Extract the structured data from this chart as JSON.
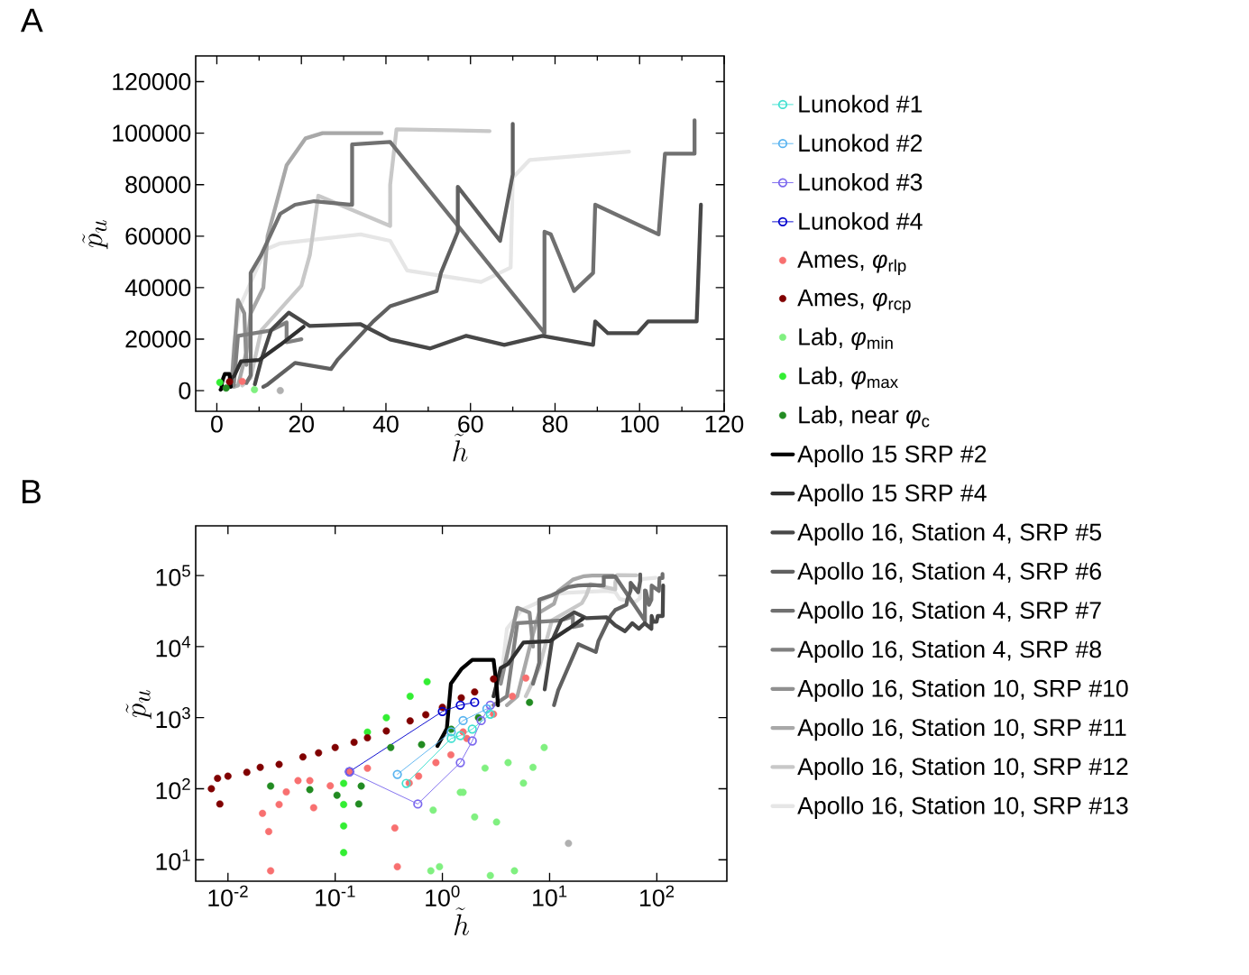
{
  "chart_data": [
    {
      "type": "line",
      "title": "A",
      "xlabel": "\\tilde{h}",
      "ylabel": "\\tilde{p}_u",
      "xlim": [
        -5,
        120
      ],
      "ylim": [
        -8000,
        130000
      ],
      "xticks": [
        0,
        20,
        40,
        60,
        80,
        100,
        120
      ],
      "yticks": [
        0,
        20000,
        40000,
        60000,
        80000,
        100000,
        120000
      ],
      "series": [
        {
          "type": "scatter",
          "marker": "circle",
          "color": "#f87070",
          "x": [
            6.0
          ],
          "values": [
            3600
          ]
        },
        {
          "type": "scatter",
          "marker": "circle",
          "color": "#800000",
          "x": [
            3
          ],
          "values": [
            3500
          ]
        },
        {
          "type": "scatter",
          "marker": "circle",
          "color": "#80f080",
          "x": [
            8.9
          ],
          "values": [
            400
          ]
        },
        {
          "type": "scatter",
          "marker": "circle",
          "color": "#33ee33",
          "x": [
            0.7
          ],
          "values": [
            3200
          ]
        },
        {
          "type": "scatter",
          "marker": "circle",
          "color": "#228b22",
          "x": [
            2.2
          ],
          "values": [
            1000
          ]
        },
        {
          "color": "#000000",
          "x": [
            0.9,
            1.1,
            1.2,
            1.5,
            1.9,
            3.0,
            3.2,
            3.3
          ],
          "values": [
            400,
            700,
            3000,
            4800,
            6500,
            6500,
            2900,
            1500
          ]
        },
        {
          "color": "#303030",
          "x": [
            3.0,
            3.5,
            4.1,
            5.7,
            10,
            15,
            20.5
          ],
          "values": [
            2000,
            5000,
            5700,
            11400,
            11900,
            17800,
            24800
          ]
        },
        {
          "color": "#484848",
          "x": [
            9,
            10.5,
            12.8,
            17,
            22,
            34,
            41,
            50.5,
            59,
            68,
            77,
            89,
            89.5,
            92.5,
            99.5,
            102,
            113.5,
            114.5
          ],
          "values": [
            2500,
            11900,
            23400,
            30300,
            25100,
            25800,
            19900,
            16400,
            21300,
            17800,
            21300,
            17800,
            26900,
            22300,
            22300,
            26900,
            26900,
            72200
          ]
        },
        {
          "color": "#606060",
          "x": [
            11,
            12,
            18.5,
            27,
            28.5,
            37,
            41,
            52,
            53,
            57,
            57,
            67,
            70,
            70
          ],
          "values": [
            1500,
            2400,
            10800,
            8400,
            11900,
            26900,
            32800,
            38700,
            45700,
            61700,
            79200,
            58200,
            84000,
            103600
          ]
        },
        {
          "color": "#707070",
          "x": [
            7,
            8,
            8,
            10.5,
            15,
            18.5,
            23,
            32,
            32,
            41,
            77,
            77.5,
            77.5,
            79,
            84.5,
            89,
            89.5,
            104.5,
            106,
            113,
            113
          ],
          "values": [
            3000,
            5900,
            45700,
            52700,
            68700,
            72200,
            73600,
            72200,
            95600,
            96600,
            23400,
            22300,
            61700,
            60700,
            38700,
            45700,
            72200,
            60700,
            92000,
            92000,
            105000
          ]
        },
        {
          "color": "#808080",
          "x": [
            3,
            4,
            5,
            12.8,
            16.5,
            16.5,
            20
          ],
          "values": [
            1500,
            2000,
            21300,
            23400,
            26500,
            18800,
            20000
          ]
        },
        {
          "color": "#909090",
          "x": [
            3.5,
            5,
            6.5,
            7
          ],
          "values": [
            3000,
            35200,
            30000,
            10000
          ]
        },
        {
          "color": "#a8a8a8",
          "x": [
            4,
            5,
            7,
            8,
            11,
            12,
            16.5,
            21,
            25,
            39
          ],
          "values": [
            1500,
            2000,
            15000,
            30000,
            40000,
            60000,
            87500,
            98000,
            100000,
            100000
          ]
        },
        {
          "color": "#c8c8c8",
          "x": [
            6,
            8,
            10.5,
            20,
            22,
            24,
            41,
            41,
            42.5,
            64.5
          ],
          "values": [
            2000,
            5000,
            23400,
            40800,
            52700,
            75700,
            64000,
            80000,
            101500,
            100800
          ]
        },
        {
          "color": "#e6e6e6",
          "x": [
            3.5,
            4,
            5.5,
            11.5,
            15,
            34,
            41,
            45,
            62.5,
            69.5,
            70,
            74,
            97.5
          ],
          "values": [
            3000,
            17800,
            32800,
            54800,
            57200,
            60700,
            58200,
            46700,
            42200,
            47800,
            82700,
            89600,
            92800
          ]
        },
        {
          "type": "scatter",
          "marker": "circle",
          "color": "#b0b0b0",
          "x": [
            15
          ],
          "values": [
            17
          ]
        }
      ]
    },
    {
      "type": "line",
      "title": "B",
      "xlabel": "\\tilde{h}",
      "ylabel": "\\tilde{p}_u",
      "log": "xy",
      "legend": "right",
      "xlim": [
        0.005,
        450
      ],
      "ylim": [
        5,
        500000
      ],
      "xticks": [
        {
          "value": 0.01,
          "label": "10$^{-2}$"
        },
        {
          "value": 0.1,
          "label": "10$^{-1}$"
        },
        {
          "value": 1,
          "label": "10$^{0}$"
        },
        {
          "value": 10,
          "label": "10$^{1}$"
        },
        {
          "value": 100,
          "label": "10$^{2}$"
        }
      ],
      "yticks": [
        {
          "value": 10,
          "label": "10$^{1}$"
        },
        {
          "value": 100,
          "label": "10$^{2}$"
        },
        {
          "value": 1000,
          "label": "10$^{3}$"
        },
        {
          "value": 10000,
          "label": "10$^{4}$"
        },
        {
          "value": 100000,
          "label": "10$^{5}$"
        }
      ],
      "series": [
        {
          "name": "Lunokod #1",
          "color": "#40e0d0",
          "marker": "circle",
          "x": [
            0.46,
            1.21,
            1.47,
            1.9,
            2.8
          ],
          "values": [
            119,
            510,
            560,
            690,
            1120
          ]
        },
        {
          "name": "Lunokod #2",
          "color": "#5ab4f0",
          "marker": "circle",
          "x": [
            0.38,
            1.21,
            1.56,
            2.6
          ],
          "values": [
            159,
            630,
            910,
            1330
          ]
        },
        {
          "name": "Lunokod #3",
          "color": "#7b68ee",
          "marker": "circle",
          "x": [
            0.136,
            0.59,
            1.47,
            1.9,
            2.3,
            2.8
          ],
          "values": [
            174,
            61,
            233,
            470,
            910,
            1500
          ]
        },
        {
          "name": "Lunokod #4",
          "color": "#0000cd",
          "marker": "circle",
          "x": [
            0.136,
            1.0,
            1.47,
            2.0
          ],
          "values": [
            174,
            1220,
            1500,
            1640
          ]
        },
        {
          "name": "Ames,  *φ*$_{rlp}$",
          "type": "scatter",
          "marker": "circle",
          "color": "#f87070",
          "x": [
            0.021,
            0.025,
            0.024,
            0.03,
            0.035,
            0.045,
            0.063,
            0.058,
            0.09,
            0.136,
            0.2,
            0.38,
            0.36,
            0.49,
            0.6,
            0.87,
            1.2,
            1.69,
            1.56,
            3.0,
            4.5,
            6.0
          ],
          "values": [
            45,
            7,
            25,
            60,
            90,
            130,
            54,
            130,
            110,
            174,
            194,
            8,
            28,
            120,
            150,
            233,
            300,
            510,
            630,
            1120,
            2000,
            3600
          ]
        },
        {
          "name": "Ames, *φ*$_{rcp}$",
          "type": "scatter",
          "marker": "circle",
          "color": "#800000",
          "x": [
            0.007,
            0.0084,
            0.008,
            0.01,
            0.015,
            0.02,
            0.03,
            0.05,
            0.07,
            0.1,
            0.15,
            0.2,
            0.3,
            0.5,
            0.7,
            1,
            1.5,
            2,
            3
          ],
          "values": [
            100,
            61,
            140,
            150,
            170,
            200,
            220,
            280,
            320,
            380,
            450,
            520,
            650,
            900,
            1100,
            1400,
            1900,
            2300,
            3500
          ]
        },
        {
          "name": "Lab, *φ*$_{min}$",
          "type": "scatter",
          "marker": "circle",
          "color": "#80f080",
          "x": [
            0.78,
            0.82,
            1.47,
            0.94,
            1.56,
            2.0,
            2.5,
            2.8,
            3.2,
            4.1,
            4.7,
            5.7,
            7.0,
            8.9
          ],
          "values": [
            7,
            50,
            89,
            8,
            89,
            40,
            195,
            6,
            34,
            233,
            7,
            120,
            200,
            380
          ]
        },
        {
          "name": "Lab, *φ*$_{max}$",
          "type": "scatter",
          "marker": "circle",
          "color": "#33ee33",
          "x": [
            0.12,
            0.12,
            0.12,
            0.12,
            0.2,
            0.3,
            0.5,
            0.72
          ],
          "values": [
            12.6,
            30,
            60,
            119,
            626,
            1000,
            2000,
            3200
          ]
        },
        {
          "name": "Lab, near *φ*$_{c}$",
          "type": "scatter",
          "marker": "circle",
          "color": "#228b22",
          "x": [
            0.025,
            0.058,
            0.104,
            0.166,
            0.175,
            0.33,
            0.64,
            1.21,
            2.17,
            6.5
          ],
          "values": [
            109,
            97,
            81,
            61,
            109,
            380,
            417,
            687,
            1000,
            1640
          ]
        },
        {
          "name": "Apollo 15 SRP #2",
          "color": "#000000",
          "x": [
            0.9,
            1.1,
            1.2,
            1.5,
            1.9,
            3.0,
            3.2,
            3.3
          ],
          "values": [
            400,
            700,
            3000,
            4800,
            6500,
            6500,
            2900,
            1500
          ]
        },
        {
          "name": "Apollo 15 SRP #4",
          "color": "#303030",
          "x": [
            3.0,
            3.5,
            4.1,
            5.7,
            10,
            15,
            20.5
          ],
          "values": [
            2000,
            5000,
            5700,
            11400,
            11900,
            17800,
            24800
          ]
        },
        {
          "name": "Apollo 16, Station 4, SRP #5",
          "color": "#484848",
          "x": [
            9,
            10.5,
            12.8,
            17,
            22,
            34,
            41,
            50.5,
            59,
            68,
            77,
            89,
            89.5,
            92.5,
            99.5,
            102,
            113.5,
            114.5
          ],
          "values": [
            2500,
            11900,
            23400,
            30300,
            25100,
            25800,
            19900,
            16400,
            21300,
            17800,
            21300,
            17800,
            26900,
            22300,
            22300,
            26900,
            26900,
            72200
          ]
        },
        {
          "name": "Apollo 16, Station 4, SRP #6",
          "color": "#606060",
          "x": [
            11,
            12,
            18.5,
            27,
            28.5,
            37,
            41,
            52,
            53,
            57,
            57,
            67,
            70,
            70
          ],
          "values": [
            1500,
            2400,
            10800,
            8400,
            11900,
            26900,
            32800,
            38700,
            45700,
            61700,
            79200,
            58200,
            84000,
            103600
          ]
        },
        {
          "name": "Apollo 16, Station 4, SRP #7",
          "color": "#707070",
          "x": [
            7,
            8,
            8,
            10.5,
            15,
            18.5,
            23,
            32,
            32,
            41,
            77,
            77.5,
            77.5,
            79,
            84.5,
            89,
            89.5,
            104.5,
            106,
            113,
            113
          ],
          "values": [
            3000,
            5900,
            45700,
            52700,
            68700,
            72200,
            73600,
            72200,
            95600,
            96600,
            23400,
            22300,
            61700,
            60700,
            38700,
            45700,
            72200,
            60700,
            92000,
            92000,
            105000
          ]
        },
        {
          "name": "Apollo 16, Station 4, SRP #8",
          "color": "#808080",
          "x": [
            3,
            4,
            5,
            12.8,
            16.5,
            16.5,
            20
          ],
          "values": [
            1500,
            2000,
            21300,
            23400,
            26500,
            18800,
            20000
          ]
        },
        {
          "name": "Apollo 16, Station 10, SRP #10",
          "color": "#909090",
          "x": [
            3.5,
            5,
            6.5,
            7
          ],
          "values": [
            3000,
            35200,
            30000,
            10000
          ]
        },
        {
          "name": "Apollo 16, Station 10, SRP #11",
          "color": "#a8a8a8",
          "x": [
            4,
            5,
            7,
            8,
            11,
            12,
            16.5,
            21,
            25,
            39
          ],
          "values": [
            1500,
            2000,
            15000,
            30000,
            40000,
            60000,
            87500,
            98000,
            100000,
            100000
          ]
        },
        {
          "name": "Apollo 16, Station 10, SRP #12",
          "color": "#c8c8c8",
          "x": [
            6,
            8,
            10.5,
            20,
            22,
            24,
            41,
            41,
            42.5,
            64.5
          ],
          "values": [
            2000,
            5000,
            23400,
            40800,
            52700,
            75700,
            64000,
            80000,
            101500,
            100800
          ]
        },
        {
          "name": "Apollo 16, Station 10, SRP #13",
          "color": "#e6e6e6",
          "x": [
            3.5,
            4,
            5.5,
            11.5,
            15,
            34,
            41,
            45,
            62.5,
            69.5,
            70,
            74,
            97.5
          ],
          "values": [
            3000,
            17800,
            32800,
            54800,
            57200,
            60700,
            58200,
            46700,
            42200,
            47800,
            82700,
            89600,
            92800
          ]
        },
        {
          "type": "scatter",
          "marker": "circle",
          "color": "#b0b0b0",
          "x": [
            15
          ],
          "values": [
            17
          ]
        }
      ]
    }
  ]
}
